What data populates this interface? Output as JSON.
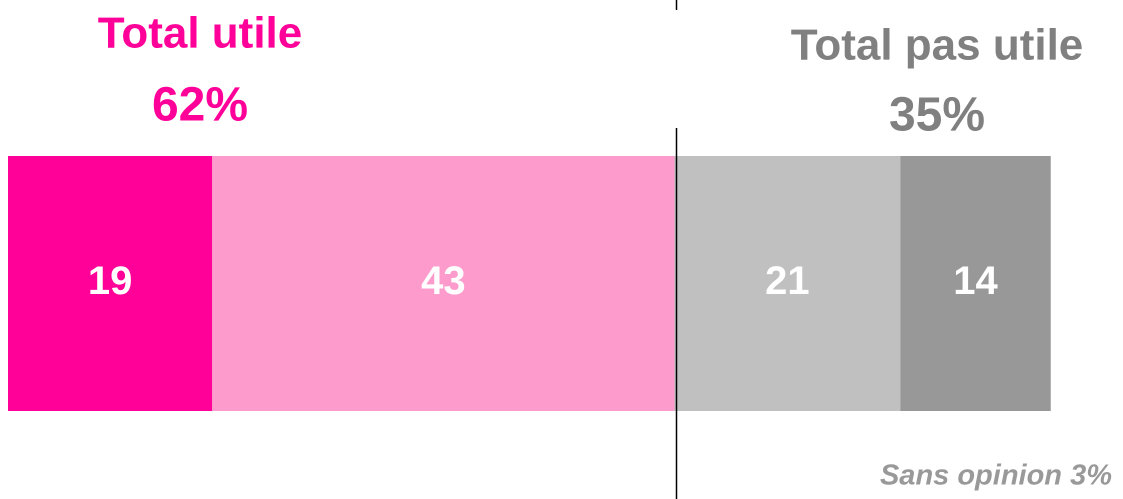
{
  "chart_data": {
    "type": "stacked-bar",
    "series": [
      {
        "name": null,
        "color": "#ff0099",
        "values": [
          19
        ]
      },
      {
        "name": null,
        "color": "#fd9bcc",
        "values": [
          43
        ]
      },
      {
        "name": null,
        "color": "#c0c0c0",
        "values": [
          21
        ]
      },
      {
        "name": null,
        "color": "#989898",
        "values": [
          14
        ]
      }
    ],
    "xlim": [
      0,
      100
    ],
    "groups": [
      {
        "name": "Total utile",
        "value": 62,
        "value_label": "62%",
        "color": "#ff0099"
      },
      {
        "name": "Total pas utile",
        "value": 35,
        "value_label": "35%",
        "color": "#808080"
      }
    ],
    "no_opinion": {
      "value": 3,
      "label": "Sans opinion 3%",
      "color": "#999999"
    }
  }
}
